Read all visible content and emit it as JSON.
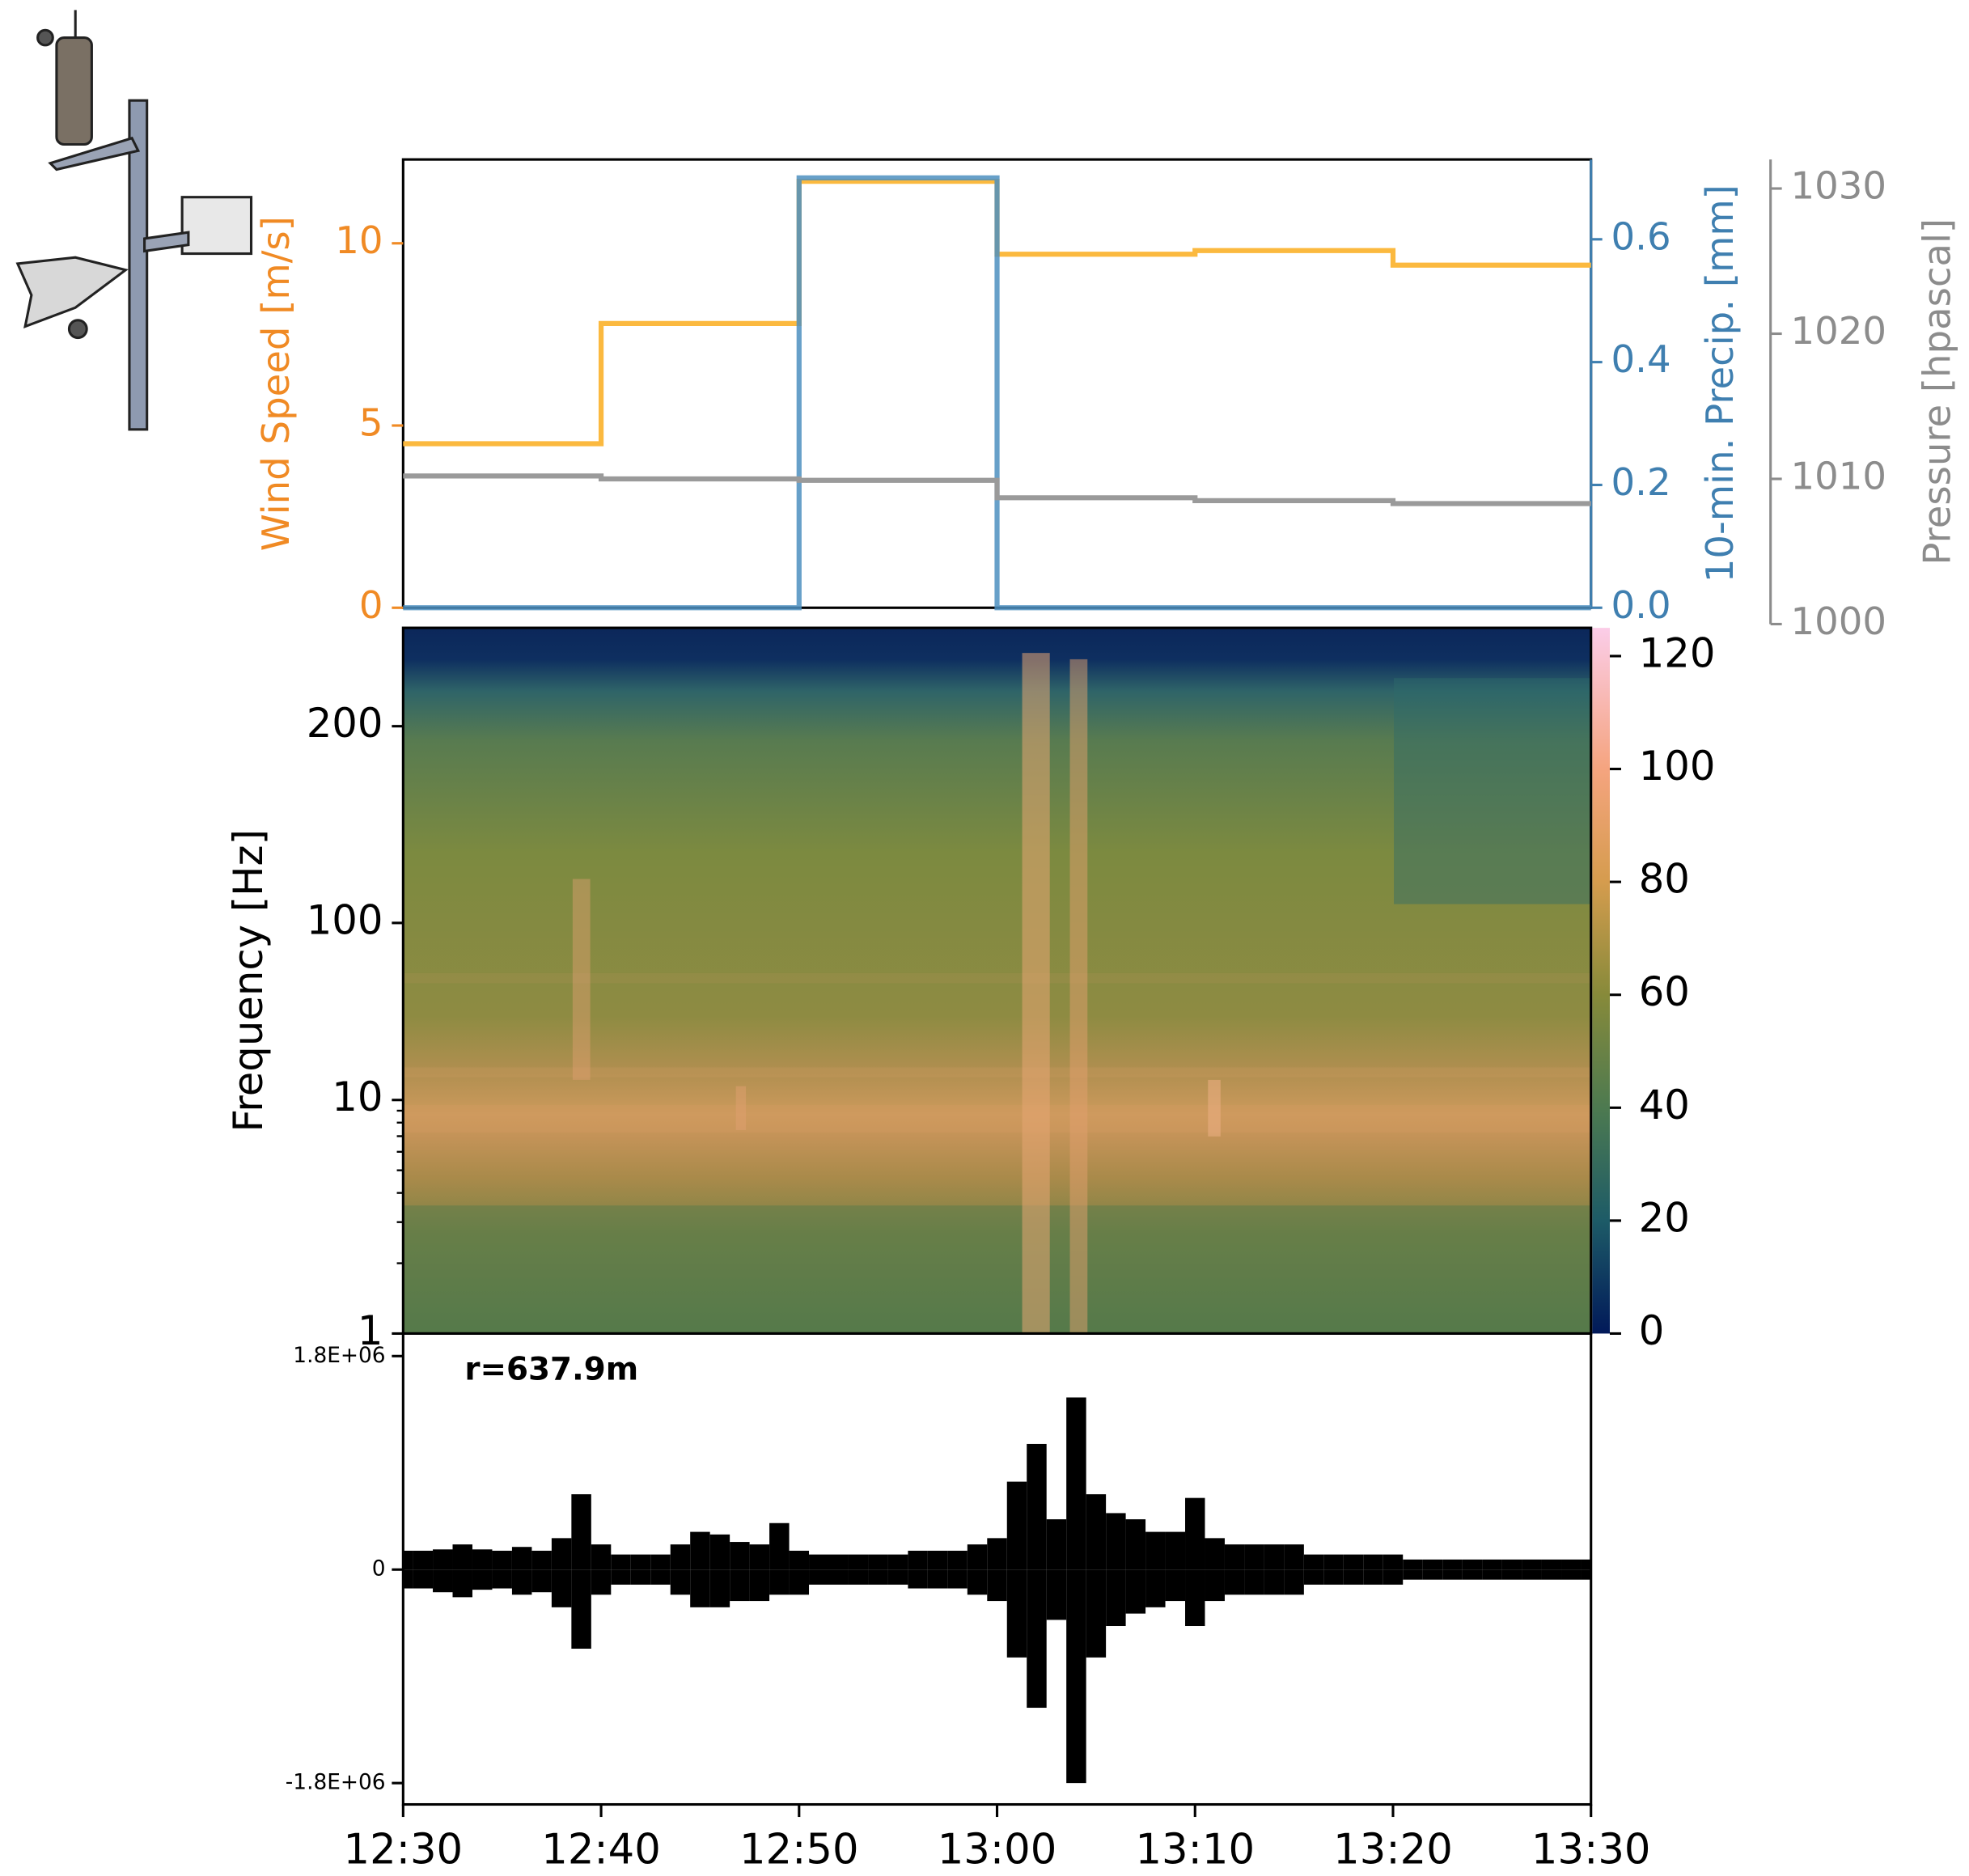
{
  "chart_data": [
    {
      "type": "step",
      "x": [
        0,
        10,
        20,
        30,
        40,
        50
      ],
      "xlim": [
        0,
        60
      ],
      "series": [
        {
          "color": "#fbb93f",
          "values": [
            9.4,
            9.8,
            9.7,
            11.7,
            7.8,
            4.5
          ],
          "axis": "y"
        },
        {
          "color": "#4c8fc0",
          "values": [
            0,
            0,
            0,
            0.7,
            0,
            0
          ],
          "axis": "y2"
        },
        {
          "color": "#9a9a9a",
          "values": [
            1008.3,
            1008.5,
            1008.7,
            1009.9,
            1010.0,
            1010.2
          ],
          "axis": "y3"
        }
      ],
      "ylabel": "Wind Speed [m/s]",
      "ycolor": "#f08a24",
      "ylim": [
        0,
        12.3
      ],
      "yticks": [
        0,
        5,
        10
      ],
      "y2label": "10-min. Precip. [mm]",
      "y2color": "#3f7fb0",
      "y2lim": [
        0,
        0.73
      ],
      "y2ticks": [
        {
          "value": 0,
          "label": "0.0"
        },
        {
          "value": 0.2,
          "label": "0.2"
        },
        {
          "value": 0.4,
          "label": "0.4"
        },
        {
          "value": 0.6,
          "label": "0.6"
        }
      ],
      "y3label": "Pressure [hpascal]",
      "y3color": "#8c8c8c",
      "y3lim": [
        1000,
        1032
      ],
      "y3ticks": [
        1000,
        1010,
        1020,
        1030
      ]
    },
    {
      "type": "spectrogram",
      "ylabel": "Frequency [Hz]",
      "yscale": "log-below-linear-above",
      "ylinthresh": 10,
      "ylim": [
        1,
        250
      ],
      "yticks": [
        1,
        10,
        100,
        200
      ],
      "yminorticks": [
        2,
        3,
        4,
        5,
        6,
        7,
        8,
        9
      ],
      "clim": [
        0,
        125
      ],
      "cticks": [
        0,
        20,
        40,
        60,
        80,
        100,
        120
      ]
    },
    {
      "type": "envelope",
      "x": [
        0,
        1,
        2,
        3,
        4,
        5,
        6,
        7,
        8,
        9,
        10,
        11,
        12,
        13,
        14,
        15,
        16,
        17,
        18,
        19,
        20,
        21,
        22,
        23,
        24,
        25,
        26,
        27,
        28,
        29,
        30,
        31,
        32,
        33,
        34,
        35,
        36,
        37,
        38,
        39,
        40,
        41,
        42,
        43,
        44,
        45,
        46,
        47,
        48,
        49,
        50,
        51,
        52,
        53,
        54,
        55,
        56,
        57,
        58,
        59,
        60
      ],
      "xlim": [
        0,
        60
      ],
      "xticks": [
        {
          "value": 0,
          "label": "12:30"
        },
        {
          "value": 10,
          "label": "12:40"
        },
        {
          "value": 20,
          "label": "12:50"
        },
        {
          "value": 30,
          "label": "13:00"
        },
        {
          "value": 40,
          "label": "13:10"
        },
        {
          "value": 50,
          "label": "13:20"
        },
        {
          "value": 60,
          "label": "13:30"
        }
      ],
      "series": [
        {
          "color": "#000000",
          "values": [
            159000,
            159000,
            170000,
            212000,
            170000,
            159000,
            191000,
            159000,
            265000,
            635000,
            212000,
            127000,
            127000,
            127000,
            212000,
            318000,
            296000,
            233000,
            212000,
            392000,
            159000,
            127000,
            127000,
            127000,
            127000,
            127000,
            159000,
            159000,
            159000,
            212000,
            265000,
            741000,
            1059000,
            424000,
            1451000,
            635000,
            476000,
            424000,
            318000,
            318000,
            604000,
            265000,
            212000,
            212000,
            212000,
            212000,
            127000,
            127000,
            127000,
            127000,
            127000,
            85000,
            85000,
            85000,
            85000,
            85000,
            85000,
            85000,
            85000,
            85000,
            85000
          ]
        },
        {
          "color": "#000000",
          "values": [
            -159000,
            -159000,
            -191000,
            -233000,
            -170000,
            -159000,
            -212000,
            -191000,
            -318000,
            -667000,
            -212000,
            -127000,
            -127000,
            -127000,
            -212000,
            -318000,
            -318000,
            -265000,
            -265000,
            -212000,
            -212000,
            -127000,
            -127000,
            -127000,
            -127000,
            -127000,
            -159000,
            -159000,
            -159000,
            -212000,
            -265000,
            -741000,
            -1165000,
            -424000,
            -1800000,
            -741000,
            -476000,
            -371000,
            -318000,
            -265000,
            -476000,
            -265000,
            -212000,
            -212000,
            -212000,
            -212000,
            -127000,
            -127000,
            -127000,
            -127000,
            -127000,
            -85000,
            -85000,
            -85000,
            -85000,
            -85000,
            -85000,
            -85000,
            -85000,
            -85000,
            -85000
          ]
        }
      ],
      "ylim": [
        -1980000,
        1990000
      ],
      "yticks": [
        {
          "value": -1800000,
          "label": "-1.8E+06"
        },
        0,
        {
          "value": 1800000,
          "label": "1.8E+06"
        }
      ],
      "annotation": "r=637.9m"
    }
  ]
}
